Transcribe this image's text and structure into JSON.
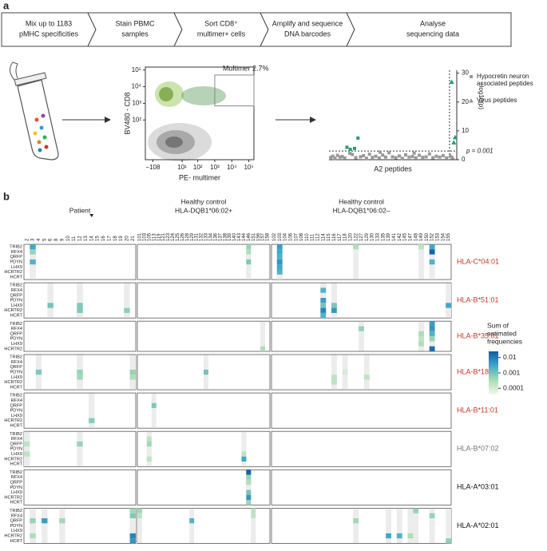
{
  "panel_labels": [
    "a",
    "b"
  ],
  "steps": [
    [
      "Mix up to 1183",
      "pMHC specificities"
    ],
    [
      "Stain PBMC",
      "samples"
    ],
    [
      "Sort CD8⁺",
      "multimer+ cells"
    ],
    [
      "Amplify and sequence",
      "DNA barcodes"
    ],
    [
      "Analyse",
      "sequencing data"
    ]
  ],
  "chart_data": [
    {
      "type": "density",
      "xlabel": "PE- multimer",
      "ylabel": "BV480 - CD8",
      "gate_label": "Multimer 2.7%",
      "scale": "asinh",
      "xlim": [
        -300,
        200000
      ],
      "ylim": [
        -60,
        150000
      ],
      "xticks": [
        {
          "value": -108,
          "label": "−108"
        },
        {
          "value": 10,
          "label": "10¹"
        },
        {
          "value": 100,
          "label": "10²"
        },
        {
          "value": 1000,
          "label": "10³"
        },
        {
          "value": 10000,
          "label": "10⁴"
        },
        {
          "value": 100000,
          "label": "10⁵"
        }
      ],
      "yticks": [
        {
          "value": 100,
          "label": "10²"
        },
        {
          "value": 1000,
          "label": "10³"
        },
        {
          "value": 10000,
          "label": "10⁴"
        },
        {
          "value": 100000,
          "label": "10⁵"
        }
      ],
      "gate": {
        "x": [
          1000,
          200000
        ],
        "y": [
          700,
          50000
        ]
      }
    },
    {
      "type": "scatter",
      "xlabel": "A2 peptides",
      "ylabel": "−log10(p)",
      "xlim": [
        0,
        300
      ],
      "ylim": [
        0,
        31
      ],
      "yticks": [
        0,
        10,
        20,
        30
      ],
      "threshold": 3,
      "threshold_label": "p = 0.001",
      "divider": 283,
      "highlight_color": "#1f9d74",
      "background_color": "#999999",
      "background_points": {
        "x": [
          4,
          9,
          14,
          20,
          26,
          31,
          37,
          49,
          55,
          63,
          74,
          81,
          88,
          95,
          102,
          110,
          118,
          126,
          133,
          141,
          149,
          157,
          165,
          172,
          180,
          188,
          196,
          204,
          212,
          220,
          228,
          236,
          244,
          252,
          260,
          268,
          276
        ],
        "y": [
          0.8,
          1.2,
          0.5,
          1.5,
          0.9,
          1.1,
          0.6,
          2.2,
          1.8,
          0.7,
          1.0,
          1.4,
          0.5,
          1.9,
          0.8,
          1.2,
          0.6,
          1.6,
          0.9,
          2.4,
          1.0,
          0.7,
          1.3,
          0.5,
          1.7,
          0.9,
          1.1,
          0.6,
          1.5,
          0.8,
          1.0,
          2.0,
          0.7,
          1.2,
          0.9,
          1.4,
          0.6
        ]
      },
      "series": [
        {
          "name": "Hypocretin neuron associated peptides",
          "color": "#999999",
          "marker": "square",
          "x": [
            42,
            50,
            60,
            68,
            120,
            200
          ],
          "y": [
            4.3,
            3.6,
            3.9,
            7.5,
            2.6,
            2.3
          ]
        },
        {
          "name": "Virus peptides",
          "color": "#999999",
          "marker": "triangle",
          "x": [
            285,
            288,
            290,
            293,
            296
          ],
          "y": [
            1.5,
            27,
            0.8,
            6,
            7.8
          ]
        }
      ]
    },
    {
      "type": "heatmap",
      "groups": [
        {
          "title": [
            "Patient"
          ],
          "columns": [
            "2",
            "3",
            "4",
            "5",
            "6",
            "8",
            "9",
            "10",
            "11",
            "12",
            "13",
            "14",
            "15",
            "16",
            "17",
            "18",
            "19",
            "20",
            "21"
          ]
        },
        {
          "title": [
            "Healthy control",
            "HLA-DQB1*06:02+"
          ],
          "columns": [
            "101",
            "103",
            "105",
            "113",
            "119",
            "121",
            "123",
            "124",
            "125",
            "126",
            "128",
            "129",
            "131",
            "132",
            "133",
            "134",
            "136",
            "137",
            "138",
            "139",
            "140",
            "143",
            "144",
            "146",
            "151",
            "156",
            "157",
            "158"
          ]
        },
        {
          "title": [
            "Healthy control",
            "HLA-DQB1*06:02–"
          ],
          "columns": [
            "102",
            "103",
            "104",
            "106",
            "107",
            "108",
            "110",
            "111",
            "112",
            "114",
            "115",
            "116",
            "117",
            "118",
            "120",
            "122",
            "127",
            "129",
            "130",
            "133",
            "135",
            "139",
            "141",
            "142",
            "145",
            "147",
            "148",
            "149",
            "150",
            "152",
            "153",
            "154",
            "155"
          ]
        }
      ],
      "blocks": [
        {
          "allele": "HLA-C*04:01",
          "color": "#c0392b",
          "rows": [
            "TRIB2",
            "RFX4",
            "QRFP",
            "PDYN",
            "LHX9",
            "HCRTR2",
            "HCRT"
          ],
          "cells": [
            [
              [
                "3",
                "TRIB2",
                0.003
              ],
              [
                "3",
                "RFX4",
                0.0005
              ],
              [
                "3",
                "PDYN",
                0.002
              ]
            ],
            [
              [
                "146",
                "TRIB2",
                0.0005
              ],
              [
                "146",
                "RFX4",
                0.0003
              ],
              [
                "146",
                "PDYN",
                0.0008
              ]
            ],
            [
              [
                "103",
                "TRIB2",
                0.004
              ],
              [
                "103",
                "RFX4",
                0.003
              ],
              [
                "103",
                "QRFP",
                0.002
              ],
              [
                "103",
                "PDYN",
                0.005
              ],
              [
                "103",
                "LHX9",
                0.003
              ],
              [
                "103",
                "HCRTR2",
                0.002
              ],
              [
                "122",
                "TRIB2",
                0.0003
              ],
              [
                "149",
                "TRIB2",
                0.0002
              ],
              [
                "152",
                "TRIB2",
                0.003
              ],
              [
                "152",
                "RFX4",
                0.02
              ],
              [
                "152",
                "PDYN",
                0.002
              ]
            ]
          ]
        },
        {
          "allele": "HLA-B*51:01",
          "color": "#c0392b",
          "rows": [
            "TRIB2",
            "RFX4",
            "QRFP",
            "PDYN",
            "LHX9",
            "HCRTR2",
            "HCRT"
          ],
          "cells": [
            [
              [
                "6",
                "LHX9",
                0.001
              ],
              [
                "12",
                "LHX9",
                0.0008
              ],
              [
                "12",
                "HCRTR2",
                0.0008
              ],
              [
                "20",
                "HCRTR2",
                0.0006
              ]
            ],
            [],
            [
              [
                "114",
                "RFX4",
                0.002
              ],
              [
                "114",
                "PDYN",
                0.004
              ],
              [
                "114",
                "LHX9",
                0.001
              ],
              [
                "114",
                "HCRTR2",
                0.008
              ],
              [
                "114",
                "HCRT",
                0.002
              ],
              [
                "116",
                "LHX9",
                0.0009
              ],
              [
                "116",
                "HCRTR2",
                0.005
              ],
              [
                "155",
                "LHX9",
                0.003
              ]
            ]
          ]
        },
        {
          "allele": "HLA-B*35:01",
          "color": "#c0392b",
          "rows": [
            "TRIB2",
            "RFX4",
            "QRFP",
            "PDYN",
            "LHX9",
            "HCRTR2"
          ],
          "cells": [
            [],
            [
              [
                "157",
                "HCRTR2",
                0.0003
              ]
            ],
            [
              [
                "127",
                "RFX4",
                0.0005
              ],
              [
                "149",
                "QRFP",
                0.0003
              ],
              [
                "149",
                "PDYN",
                0.0002
              ],
              [
                "149",
                "LHX9",
                0.0003
              ],
              [
                "152",
                "TRIB2",
                0.004
              ],
              [
                "152",
                "RFX4",
                0.005
              ],
              [
                "152",
                "QRFP",
                0.002
              ],
              [
                "152",
                "PDYN",
                0.0005
              ],
              [
                "152",
                "HCRTR2",
                0.015
              ]
            ]
          ]
        },
        {
          "allele": "HLA-B*18:01",
          "color": "#c0392b",
          "rows": [
            "TRIB2",
            "RFX4",
            "QRFP",
            "PDYN",
            "LHX9",
            "HCRTR2",
            "HCRT"
          ],
          "cells": [
            [
              [
                "4",
                "PDYN",
                0.0008
              ],
              [
                "12",
                "PDYN",
                0.0005
              ],
              [
                "12",
                "LHX9",
                0.0004
              ],
              [
                "21",
                "PDYN",
                0.0005
              ],
              [
                "21",
                "LHX9",
                0.0003
              ]
            ],
            [
              [
                "133",
                "PDYN",
                0.001
              ]
            ],
            [
              [
                "116",
                "LHX9",
                0.0002
              ],
              [
                "116",
                "HCRTR2",
                0.0002
              ],
              [
                "118",
                "PDYN",
                0.0001
              ],
              [
                "129",
                "LHX9",
                0.0002
              ]
            ]
          ]
        },
        {
          "allele": "HLA-B*11:01",
          "color": "#c0392b",
          "rows": [
            "TRIB2",
            "RFX4",
            "QRFP",
            "PDYN",
            "LHX9",
            "HCRTR2",
            "HCRT"
          ],
          "cells": [
            [
              [
                "14",
                "HCRTR2",
                0.0007
              ]
            ],
            [
              [
                "113",
                "QRFP",
                0.0008
              ]
            ],
            []
          ]
        },
        {
          "allele": "HLA-B*07:02",
          "color": "#777777",
          "rows": [
            "TRIB2",
            "RFX4",
            "QRFP",
            "PDYN",
            "LHX9",
            "HCRTR2",
            "HCRT"
          ],
          "cells": [
            [
              [
                "2",
                "QRFP",
                0.0002
              ],
              [
                "2",
                "LHX9",
                0.0002
              ],
              [
                "12",
                "QRFP",
                0.0005
              ]
            ],
            [
              [
                "105",
                "RFX4",
                0.0002
              ],
              [
                "105",
                "QRFP",
                0.0004
              ],
              [
                "105",
                "HCRTR2",
                0.0002
              ],
              [
                "144",
                "LHX9",
                0.0002
              ],
              [
                "144",
                "HCRTR2",
                0.003
              ]
            ],
            []
          ]
        },
        {
          "allele": "HLA-A*03:01",
          "color": "#111111",
          "rows": [
            "TRIB2",
            "RFX4",
            "QRFP",
            "PDYN",
            "LHX9",
            "HCRTR2",
            "HCRT"
          ],
          "cells": [
            [],
            [
              [
                "146",
                "TRIB2",
                0.02
              ],
              [
                "146",
                "RFX4",
                0.0005
              ],
              [
                "146",
                "QRFP",
                0.0003
              ],
              [
                "146",
                "LHX9",
                0.001
              ],
              [
                "146",
                "HCRTR2",
                0.005
              ],
              [
                "146",
                "HCRT",
                0.0005
              ]
            ],
            []
          ]
        },
        {
          "allele": "HLA-A*02:01",
          "color": "#111111",
          "rows": [
            "TRIB2",
            "RFX4",
            "QRFP",
            "PDYN",
            "LHX9",
            "HCRTR2",
            "HCRT"
          ],
          "cells": [
            [
              [
                "3",
                "QRFP",
                0.0005
              ],
              [
                "3",
                "HCRTR2",
                0.0003
              ],
              [
                "5",
                "QRFP",
                0.004
              ],
              [
                "9",
                "QRFP",
                0.0004
              ],
              [
                "21",
                "TRIB2",
                0.0004
              ],
              [
                "21",
                "RFX4",
                0.0008
              ],
              [
                "21",
                "HCRTR2",
                0.008
              ],
              [
                "21",
                "HCRT",
                0.005
              ]
            ],
            [
              [
                "101",
                "TRIB2",
                0.0004
              ],
              [
                "101",
                "RFX4",
                0.0002
              ],
              [
                "129",
                "QRFP",
                0.002
              ],
              [
                "151",
                "TRIB2",
                0.0002
              ],
              [
                "151",
                "RFX4",
                0.0002
              ]
            ],
            [
              [
                "122",
                "QRFP",
                0.0004
              ],
              [
                "139",
                "HCRTR2",
                0.003
              ],
              [
                "142",
                "HCRTR2",
                0.002
              ],
              [
                "147",
                "HCRTR2",
                0.0003
              ],
              [
                "148",
                "TRIB2",
                0.0005
              ],
              [
                "152",
                "RFX4",
                0.0005
              ],
              [
                "155",
                "HCRT",
                0.0006
              ]
            ]
          ]
        }
      ],
      "colorbar": {
        "title": [
          "Sum of",
          "estimated",
          "frequencies"
        ],
        "ticks": [
          0.01,
          0.001,
          0.0001
        ],
        "lim": [
          4e-05,
          0.025
        ],
        "colors": [
          "#f3faea",
          "#a9dcb6",
          "#43a9c6",
          "#0a5ca8"
        ]
      }
    }
  ]
}
